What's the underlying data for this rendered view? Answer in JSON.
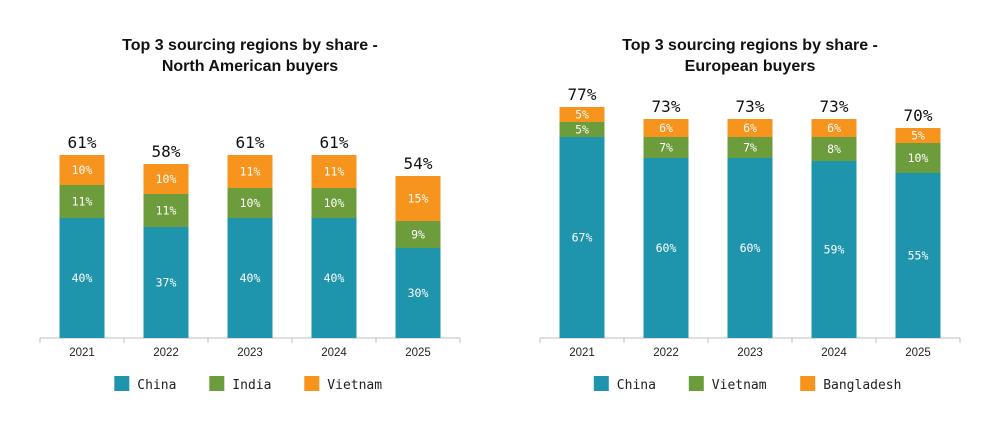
{
  "chart_data": [
    {
      "type": "bar",
      "stacked": true,
      "title": "Top 3 sourcing regions by share -",
      "subtitle": "North American buyers",
      "categories": [
        "2021",
        "2022",
        "2023",
        "2024",
        "2025"
      ],
      "series": [
        {
          "name": "China",
          "color": "#1f94ad",
          "values": [
            40,
            37,
            40,
            40,
            30
          ],
          "labels": [
            "40%",
            "37%",
            "40%",
            "40%",
            "30%"
          ]
        },
        {
          "name": "India",
          "color": "#6d9c3c",
          "values": [
            11,
            11,
            10,
            10,
            9
          ],
          "labels": [
            "11%",
            "11%",
            "10%",
            "10%",
            "9%"
          ]
        },
        {
          "name": "Vietnam",
          "color": "#f7941d",
          "values": [
            10,
            10,
            11,
            11,
            15
          ],
          "labels": [
            "10%",
            "10%",
            "11%",
            "11%",
            "15%"
          ]
        }
      ],
      "totals": [
        "61%",
        "58%",
        "61%",
        "61%",
        "54%"
      ],
      "ylim": [
        0,
        80
      ],
      "grid": false,
      "legend_position": "bottom"
    },
    {
      "type": "bar",
      "stacked": true,
      "title": "Top 3 sourcing regions by share -",
      "subtitle": "European buyers",
      "categories": [
        "2021",
        "2022",
        "2023",
        "2024",
        "2025"
      ],
      "series": [
        {
          "name": "China",
          "color": "#1f94ad",
          "values": [
            67,
            60,
            60,
            59,
            55
          ],
          "labels": [
            "67%",
            "60%",
            "60%",
            "59%",
            "55%"
          ]
        },
        {
          "name": "Vietnam",
          "color": "#6d9c3c",
          "values": [
            5,
            7,
            7,
            8,
            10
          ],
          "labels": [
            "5%",
            "7%",
            "7%",
            "8%",
            "10%"
          ]
        },
        {
          "name": "Bangladesh",
          "color": "#f7941d",
          "values": [
            5,
            6,
            6,
            6,
            5
          ],
          "labels": [
            "5%",
            "6%",
            "6%",
            "6%",
            "5%"
          ]
        }
      ],
      "totals": [
        "77%",
        "73%",
        "73%",
        "73%",
        "70%"
      ],
      "ylim": [
        0,
        80
      ],
      "grid": false,
      "legend_position": "bottom"
    }
  ]
}
